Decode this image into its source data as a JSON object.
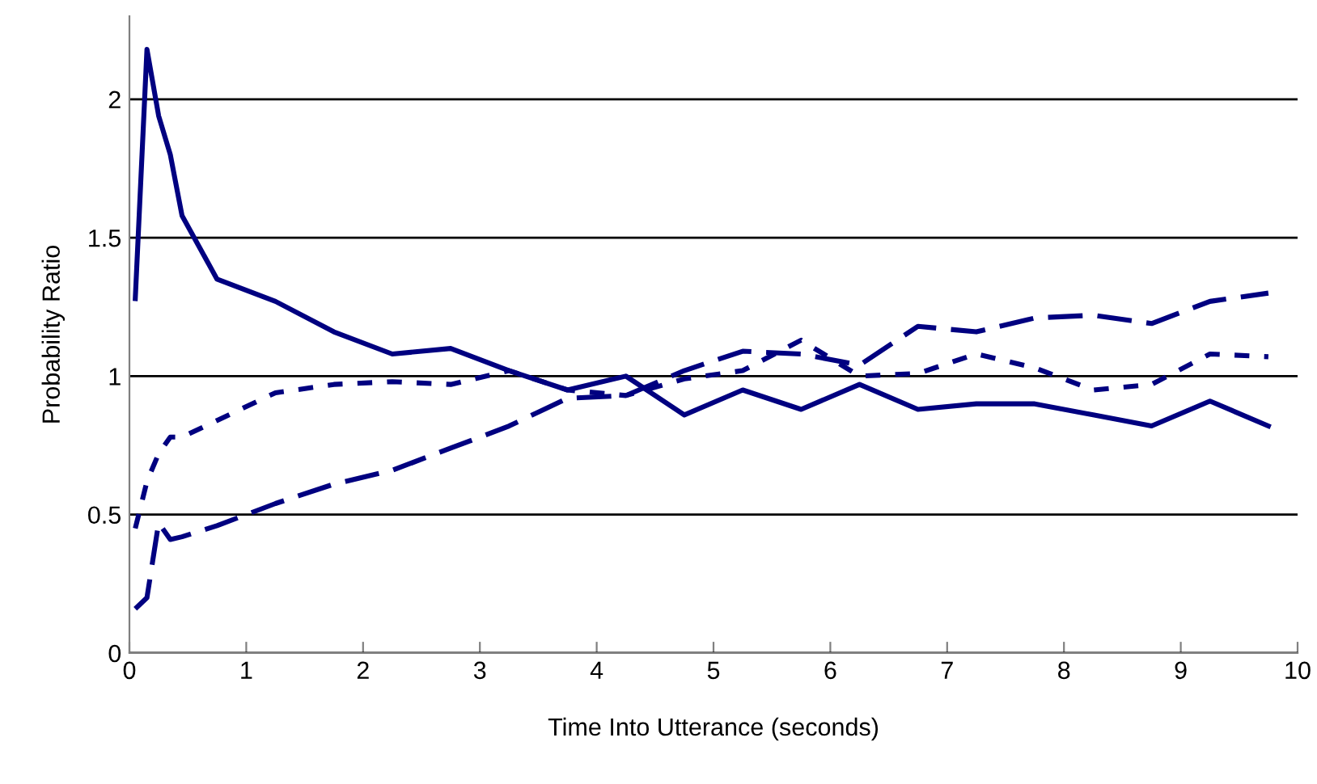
{
  "chart_data": {
    "type": "line",
    "xlabel": "Time Into Utterance (seconds)",
    "ylabel": "Probability Ratio",
    "xlim": [
      0,
      10
    ],
    "xticks": [
      0,
      1,
      2,
      3,
      4,
      5,
      6,
      7,
      8,
      9,
      10
    ],
    "ylim": [
      0,
      2.3
    ],
    "yticks": [
      0,
      0.5,
      1,
      1.5,
      2
    ],
    "grid": "y",
    "marker": "none",
    "x": [
      0.05,
      0.15,
      0.25,
      0.35,
      0.45,
      0.75,
      1.25,
      1.75,
      2.25,
      2.75,
      3.25,
      3.75,
      4.25,
      4.75,
      5.25,
      5.75,
      6.25,
      6.75,
      7.25,
      7.75,
      8.25,
      8.75,
      9.25,
      9.75
    ],
    "series": [
      {
        "color": "#000080",
        "line_style": "solid",
        "values": [
          1.28,
          2.18,
          1.94,
          1.8,
          1.58,
          1.35,
          1.27,
          1.16,
          1.08,
          1.1,
          1.02,
          0.95,
          1.0,
          0.86,
          0.95,
          0.88,
          0.97,
          0.88,
          0.9,
          0.9,
          0.86,
          0.82,
          0.91,
          0.82
        ]
      },
      {
        "color": "#000080",
        "line_style": "dotted",
        "values": [
          0.45,
          0.62,
          0.72,
          0.78,
          0.78,
          0.84,
          0.94,
          0.97,
          0.98,
          0.97,
          1.02,
          0.95,
          0.93,
          0.99,
          1.02,
          1.13,
          1.0,
          1.01,
          1.08,
          1.03,
          0.95,
          0.97,
          1.08,
          1.07
        ]
      },
      {
        "color": "#000080",
        "line_style": "dashed",
        "values": [
          0.16,
          0.2,
          0.47,
          0.41,
          0.42,
          0.46,
          0.54,
          0.61,
          0.66,
          0.74,
          0.82,
          0.92,
          0.93,
          1.02,
          1.09,
          1.08,
          1.04,
          1.18,
          1.16,
          1.21,
          1.22,
          1.19,
          1.27,
          1.3
        ]
      }
    ]
  }
}
